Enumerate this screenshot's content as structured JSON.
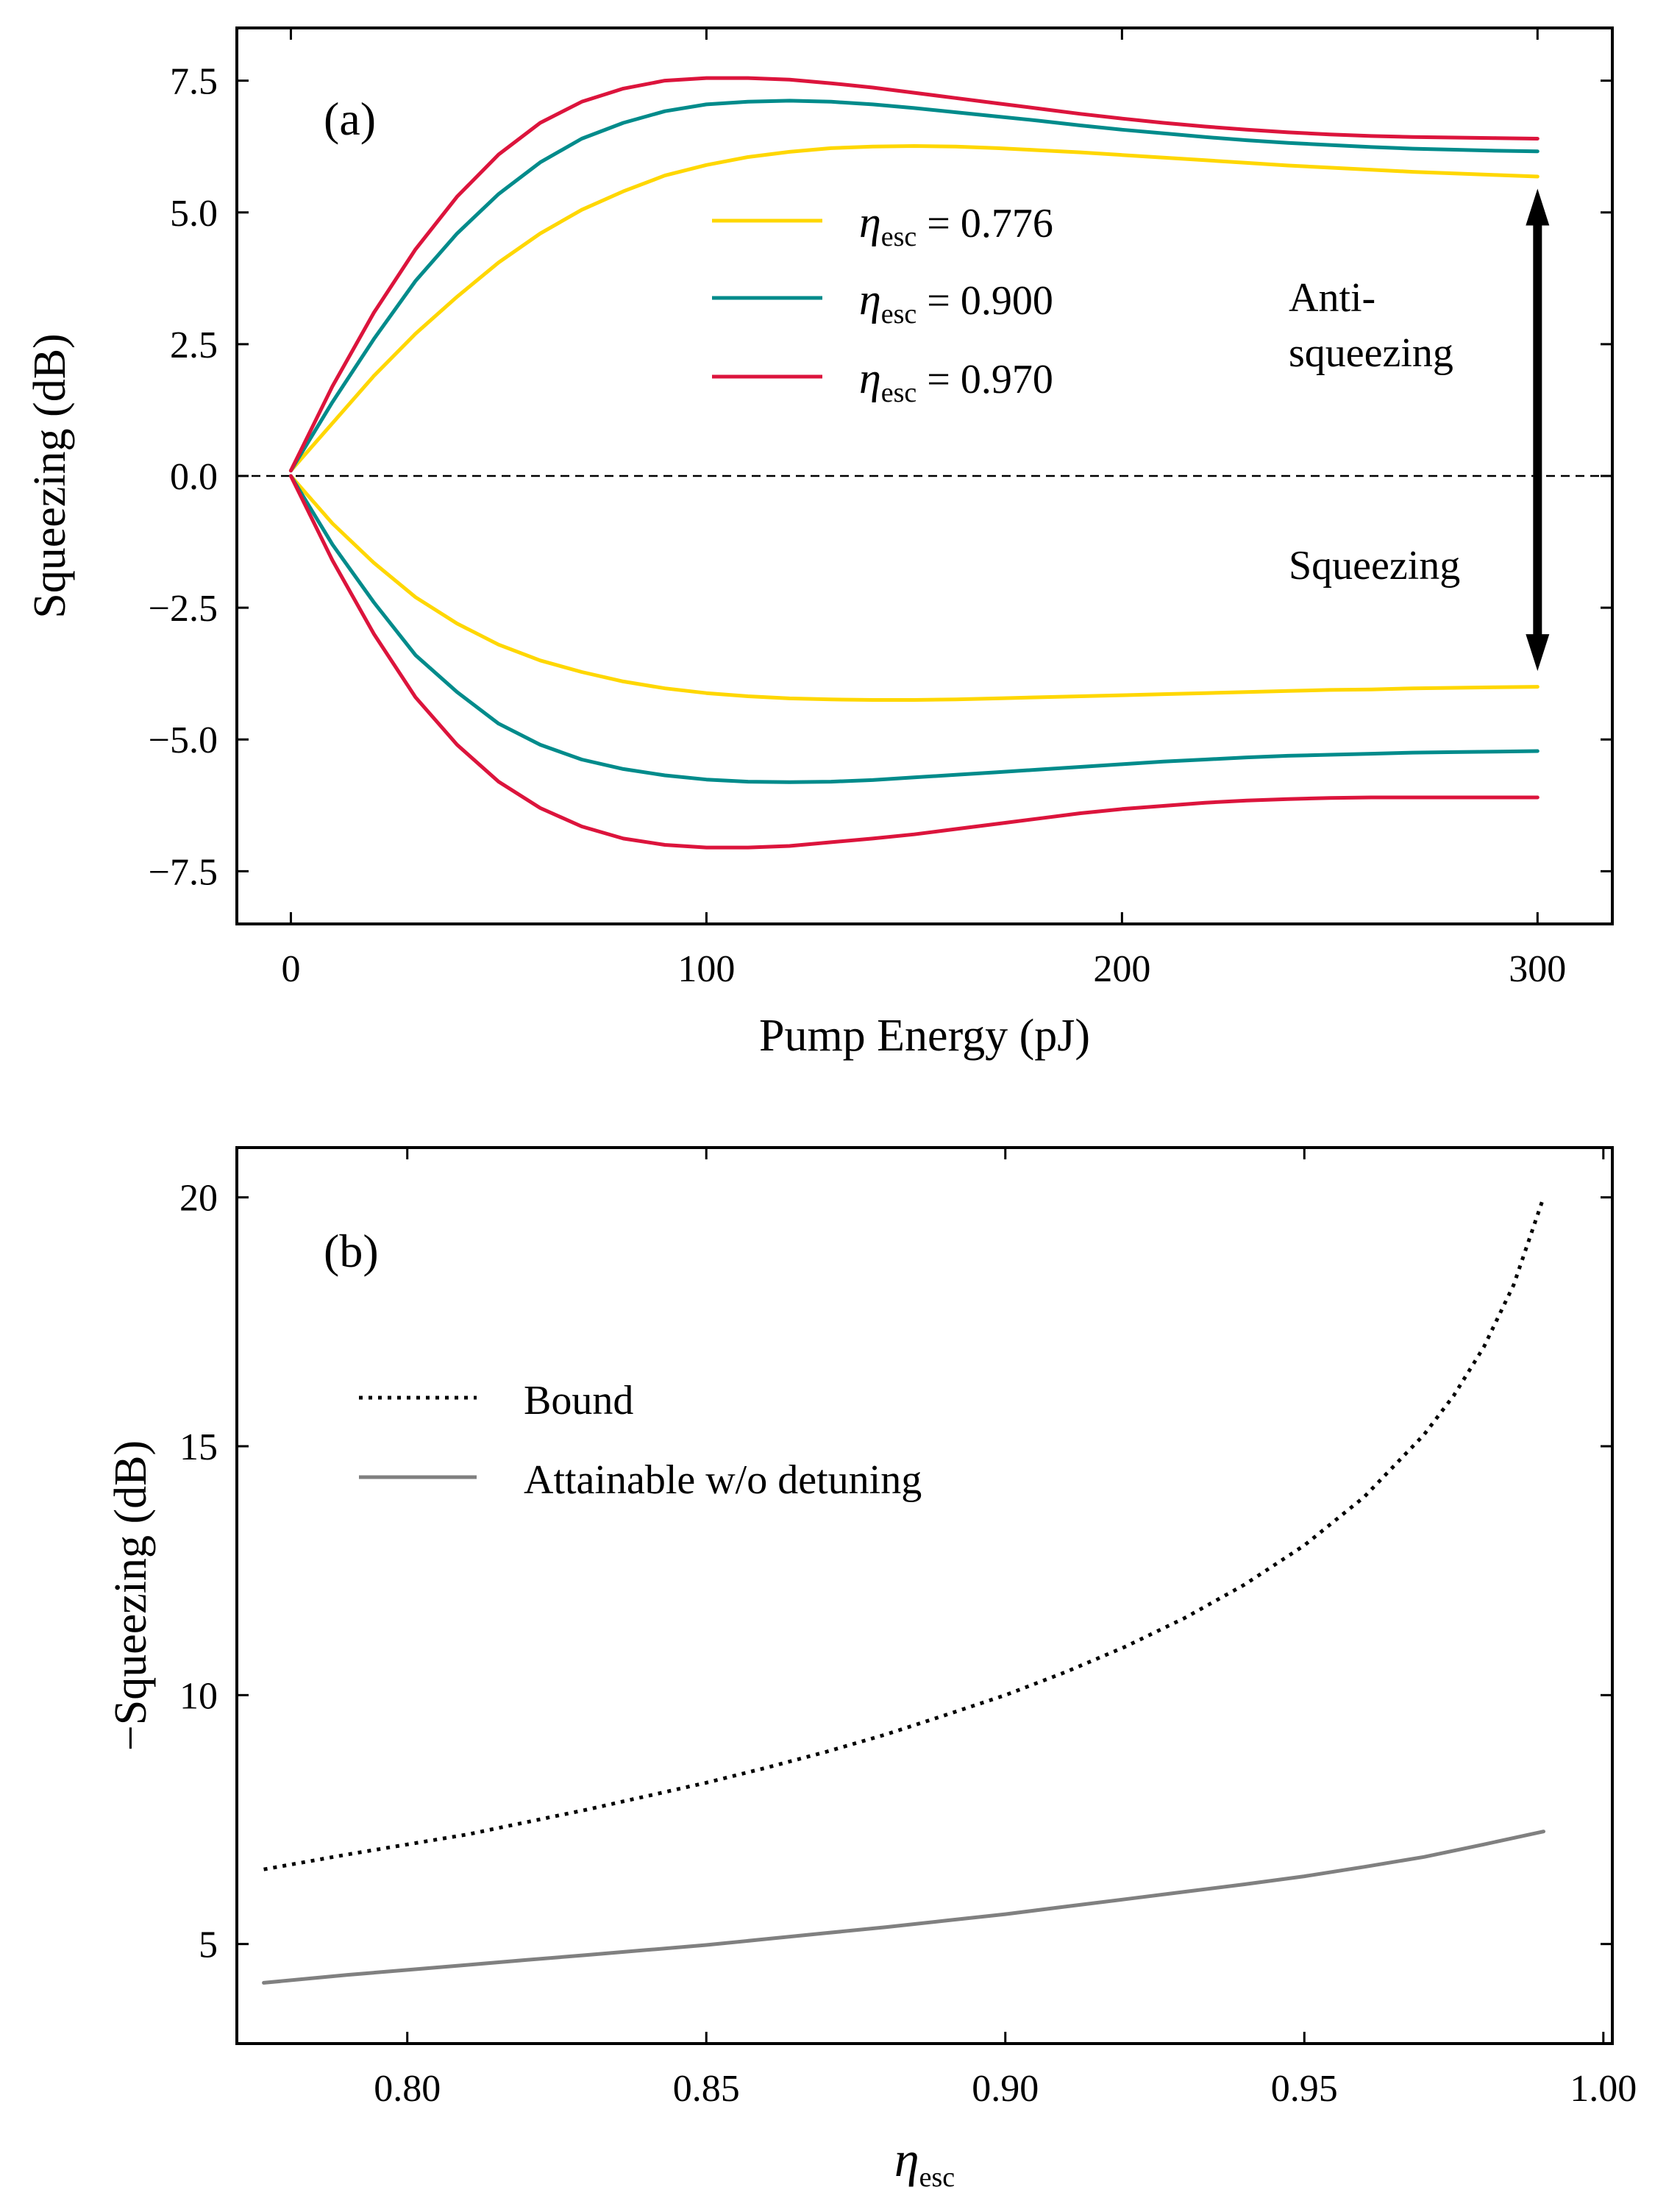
{
  "chart_data": [
    {
      "type": "line",
      "panel_label": "(a)",
      "xlabel": "Pump Energy (pJ)",
      "ylabel": "Squeezing (dB)",
      "xlim": [
        -13,
        318
      ],
      "ylim": [
        -8.5,
        8.5
      ],
      "xticks": [
        0,
        100,
        200,
        300
      ],
      "xtick_labels": [
        "0",
        "100",
        "200",
        "300"
      ],
      "yticks": [
        7.5,
        5.0,
        2.5,
        0.0,
        -2.5,
        -5.0,
        -7.5
      ],
      "ytick_labels": [
        "7.5",
        "5.0",
        "2.5",
        "0.0",
        "−2.5",
        "−5.0",
        "−7.5"
      ],
      "zero_line": true,
      "legend": {
        "placement": "top-center"
      },
      "series": [
        {
          "name": "anti-squeezing 0.776",
          "legend": "0.776",
          "color": "#FFD700",
          "x": [
            0,
            10,
            20,
            30,
            40,
            50,
            60,
            70,
            80,
            90,
            100,
            110,
            120,
            130,
            140,
            150,
            160,
            170,
            180,
            190,
            200,
            210,
            220,
            230,
            240,
            250,
            260,
            270,
            280,
            290,
            300
          ],
          "y": [
            0.1,
            1.0,
            1.9,
            2.7,
            3.4,
            4.05,
            4.6,
            5.05,
            5.4,
            5.7,
            5.9,
            6.05,
            6.15,
            6.22,
            6.25,
            6.26,
            6.25,
            6.22,
            6.18,
            6.14,
            6.09,
            6.04,
            5.99,
            5.94,
            5.89,
            5.85,
            5.81,
            5.77,
            5.74,
            5.71,
            5.68
          ]
        },
        {
          "name": "anti-squeezing 0.900",
          "legend": "0.900",
          "color": "#008B8B",
          "x": [
            0,
            10,
            20,
            30,
            40,
            50,
            60,
            70,
            80,
            90,
            100,
            110,
            120,
            130,
            140,
            150,
            160,
            170,
            180,
            190,
            200,
            210,
            220,
            230,
            240,
            250,
            260,
            270,
            280,
            290,
            300
          ],
          "y": [
            0.1,
            1.4,
            2.6,
            3.7,
            4.6,
            5.35,
            5.95,
            6.4,
            6.7,
            6.92,
            7.05,
            7.1,
            7.12,
            7.1,
            7.05,
            6.98,
            6.9,
            6.82,
            6.74,
            6.65,
            6.57,
            6.5,
            6.43,
            6.37,
            6.32,
            6.28,
            6.24,
            6.21,
            6.19,
            6.17,
            6.16
          ]
        },
        {
          "name": "anti-squeezing 0.970",
          "legend": "0.970",
          "color": "#DC143C",
          "x": [
            0,
            10,
            20,
            30,
            40,
            50,
            60,
            70,
            80,
            90,
            100,
            110,
            120,
            130,
            140,
            150,
            160,
            170,
            180,
            190,
            200,
            210,
            220,
            230,
            240,
            250,
            260,
            270,
            280,
            290,
            300
          ],
          "y": [
            0.1,
            1.7,
            3.1,
            4.3,
            5.3,
            6.1,
            6.7,
            7.1,
            7.35,
            7.5,
            7.55,
            7.55,
            7.52,
            7.45,
            7.37,
            7.27,
            7.17,
            7.07,
            6.97,
            6.87,
            6.78,
            6.7,
            6.63,
            6.57,
            6.52,
            6.48,
            6.45,
            6.43,
            6.42,
            6.41,
            6.4
          ]
        },
        {
          "name": "squeezing 0.776",
          "color": "#FFD700",
          "x": [
            0,
            10,
            20,
            30,
            40,
            50,
            60,
            70,
            80,
            90,
            100,
            110,
            120,
            130,
            140,
            150,
            160,
            170,
            180,
            190,
            200,
            210,
            220,
            230,
            240,
            250,
            260,
            270,
            280,
            290,
            300
          ],
          "y": [
            0.0,
            -0.9,
            -1.65,
            -2.3,
            -2.8,
            -3.2,
            -3.5,
            -3.72,
            -3.9,
            -4.03,
            -4.12,
            -4.18,
            -4.22,
            -4.24,
            -4.25,
            -4.25,
            -4.24,
            -4.22,
            -4.2,
            -4.18,
            -4.16,
            -4.14,
            -4.12,
            -4.1,
            -4.08,
            -4.06,
            -4.05,
            -4.03,
            -4.02,
            -4.01,
            -4.0
          ]
        },
        {
          "name": "squeezing 0.900",
          "color": "#008B8B",
          "x": [
            0,
            10,
            20,
            30,
            40,
            50,
            60,
            70,
            80,
            90,
            100,
            110,
            120,
            130,
            140,
            150,
            160,
            170,
            180,
            190,
            200,
            210,
            220,
            230,
            240,
            250,
            260,
            270,
            280,
            290,
            300
          ],
          "y": [
            0.0,
            -1.3,
            -2.4,
            -3.4,
            -4.1,
            -4.7,
            -5.1,
            -5.38,
            -5.56,
            -5.68,
            -5.76,
            -5.8,
            -5.81,
            -5.8,
            -5.77,
            -5.72,
            -5.67,
            -5.62,
            -5.57,
            -5.52,
            -5.47,
            -5.42,
            -5.38,
            -5.34,
            -5.31,
            -5.29,
            -5.27,
            -5.25,
            -5.24,
            -5.23,
            -5.22
          ]
        },
        {
          "name": "squeezing 0.970",
          "color": "#DC143C",
          "x": [
            0,
            10,
            20,
            30,
            40,
            50,
            60,
            70,
            80,
            90,
            100,
            110,
            120,
            130,
            140,
            150,
            160,
            170,
            180,
            190,
            200,
            210,
            220,
            230,
            240,
            250,
            260,
            270,
            280,
            290,
            300
          ],
          "y": [
            0.0,
            -1.6,
            -3.0,
            -4.2,
            -5.1,
            -5.8,
            -6.3,
            -6.65,
            -6.88,
            -7.0,
            -7.05,
            -7.05,
            -7.02,
            -6.95,
            -6.88,
            -6.8,
            -6.7,
            -6.6,
            -6.5,
            -6.4,
            -6.32,
            -6.26,
            -6.2,
            -6.16,
            -6.13,
            -6.11,
            -6.1,
            -6.1,
            -6.1,
            -6.1,
            -6.1
          ]
        }
      ],
      "annotations": {
        "anti_line1": "Anti-",
        "anti_line2": "squeezing",
        "squeezing": "Squeezing",
        "arrow": {
          "x": 300,
          "y_top": 5.45,
          "y_bottom": -3.7
        }
      }
    },
    {
      "type": "line",
      "panel_label": "(b)",
      "xlabel": "ηesc",
      "ylabel": "−Squeezing (dB)",
      "xlim": [
        0.7715,
        1.0015
      ],
      "ylim": [
        3,
        21
      ],
      "xticks": [
        0.8,
        0.85,
        0.9,
        0.95,
        1.0
      ],
      "xtick_labels": [
        "0.80",
        "0.85",
        "0.90",
        "0.95",
        "1.00"
      ],
      "yticks": [
        20,
        15,
        10,
        5
      ],
      "ytick_labels": [
        "20",
        "15",
        "10",
        "5"
      ],
      "legend": {
        "placement": "upper-left"
      },
      "series": [
        {
          "name": "Bound",
          "style": "dotted",
          "color": "#000000",
          "x": [
            0.776,
            0.79,
            0.8,
            0.81,
            0.82,
            0.83,
            0.84,
            0.85,
            0.86,
            0.87,
            0.88,
            0.89,
            0.9,
            0.91,
            0.92,
            0.93,
            0.94,
            0.95,
            0.96,
            0.97,
            0.975,
            0.98,
            0.985,
            0.99
          ],
          "y": [
            6.5,
            6.8,
            7.0,
            7.2,
            7.45,
            7.7,
            7.97,
            8.24,
            8.54,
            8.86,
            9.21,
            9.6,
            10.0,
            10.46,
            10.97,
            11.55,
            12.22,
            13.01,
            13.98,
            15.23,
            16.02,
            16.99,
            18.24,
            20.0
          ]
        },
        {
          "name": "Attainable w/o detuning",
          "style": "solid",
          "color": "#808080",
          "x": [
            0.776,
            0.79,
            0.8,
            0.81,
            0.82,
            0.83,
            0.84,
            0.85,
            0.86,
            0.87,
            0.88,
            0.89,
            0.9,
            0.91,
            0.92,
            0.93,
            0.94,
            0.95,
            0.96,
            0.97,
            0.98,
            0.99
          ],
          "y": [
            4.22,
            4.38,
            4.48,
            4.58,
            4.68,
            4.78,
            4.88,
            4.98,
            5.1,
            5.22,
            5.34,
            5.47,
            5.6,
            5.75,
            5.9,
            6.05,
            6.2,
            6.36,
            6.55,
            6.75,
            7.0,
            7.26
          ]
        }
      ]
    }
  ]
}
